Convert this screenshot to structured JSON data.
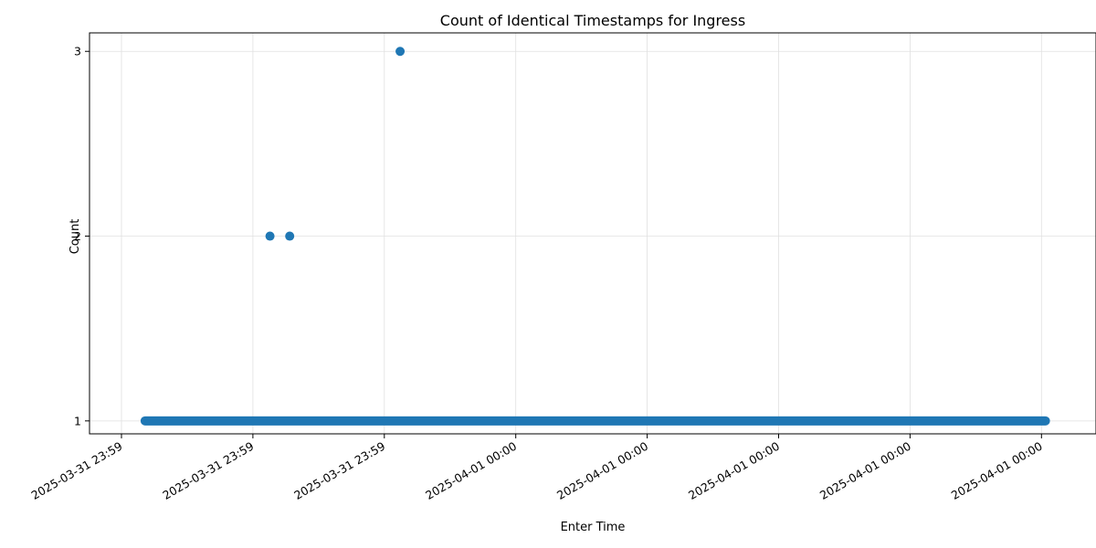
{
  "chart_data": {
    "type": "scatter",
    "title": "Count of Identical Timestamps for Ingress",
    "xlabel": "Enter Time",
    "ylabel": "Count",
    "x_ticks": [
      "2025-03-31 23:59",
      "2025-03-31 23:59",
      "2025-03-31 23:59",
      "2025-04-01 00:00",
      "2025-04-01 00:00",
      "2025-04-01 00:00",
      "2025-04-01 00:00",
      "2025-04-01 00:00"
    ],
    "y_ticks": [
      1,
      2,
      3
    ],
    "ylim": [
      0.93,
      3.1
    ],
    "grid": true,
    "series": [
      {
        "color": "#1f77b4",
        "band_y": 1,
        "band_x_range": [
          0.18,
          7.03
        ],
        "points": [
          {
            "x": 1.13,
            "y": 2
          },
          {
            "x": 1.28,
            "y": 2
          },
          {
            "x": 2.12,
            "y": 3
          }
        ]
      }
    ]
  }
}
